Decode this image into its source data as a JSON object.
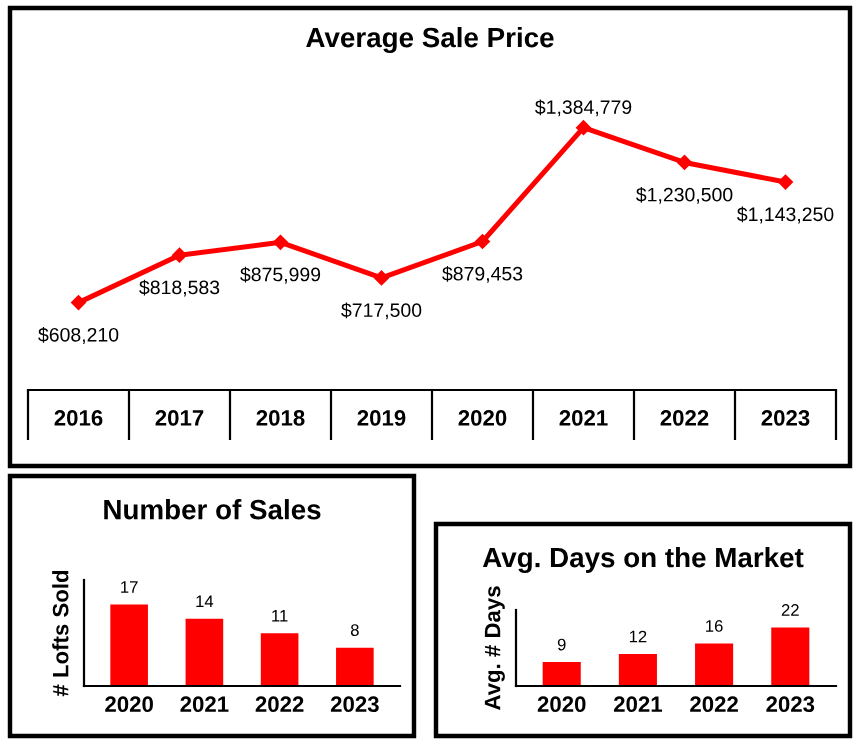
{
  "chart_data": [
    {
      "type": "line",
      "title": "Average Sale Price",
      "categories": [
        "2016",
        "2017",
        "2018",
        "2019",
        "2020",
        "2021",
        "2022",
        "2023"
      ],
      "values": [
        608210,
        818583,
        875999,
        717500,
        879453,
        1384779,
        1230500,
        1143250
      ],
      "value_labels": [
        "$608,210",
        "$818,583",
        "$875,999",
        "$717,500",
        "$879,453",
        "$1,384,779",
        "$1,230,500",
        "$1,143,250"
      ],
      "color": "#ff0000",
      "marker": "diamond"
    },
    {
      "type": "bar",
      "title": "Number of Sales",
      "categories": [
        "2020",
        "2021",
        "2022",
        "2023"
      ],
      "values": [
        17,
        14,
        11,
        8
      ],
      "color": "#ff0000",
      "ylabel": "# Lofts Sold",
      "data_labels": true
    },
    {
      "type": "bar",
      "title": "Avg. Days on the Market",
      "categories": [
        "2020",
        "2021",
        "2022",
        "2023"
      ],
      "values": [
        9,
        12,
        16,
        22
      ],
      "color": "#ff0000",
      "ylabel": "Avg. # Days",
      "data_labels": true
    }
  ]
}
